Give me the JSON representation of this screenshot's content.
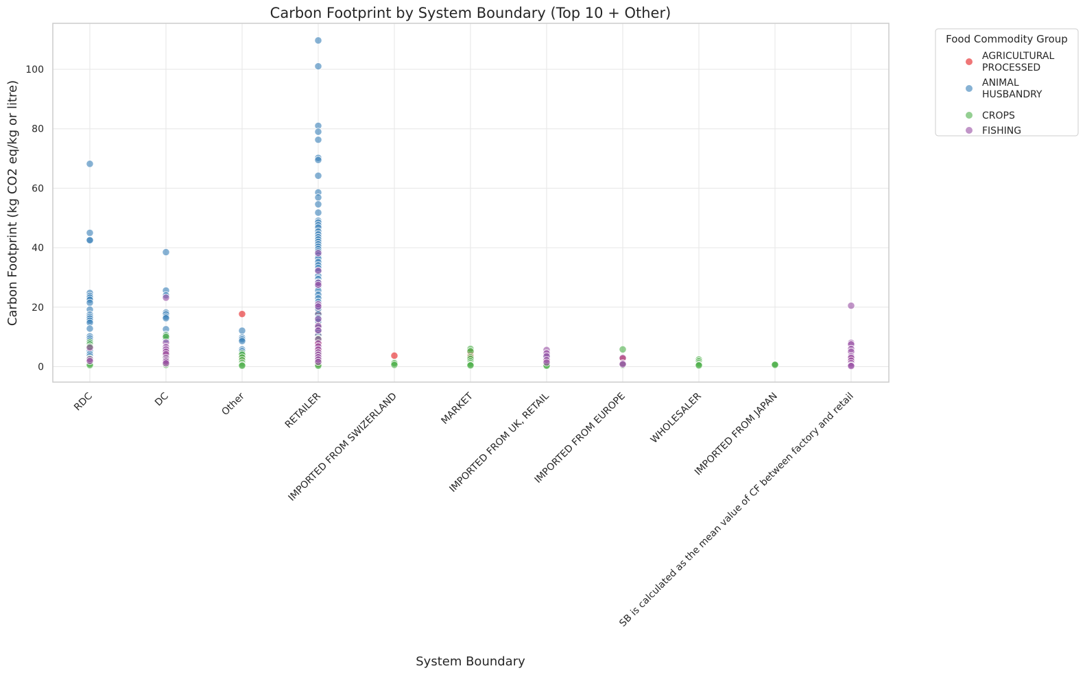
{
  "chart_data": {
    "type": "scatter",
    "title": "Carbon Footprint by System Boundary (Top 10 + Other)",
    "xlabel": "System Boundary",
    "ylabel": "Carbon Footprint (kg CO2 eq/kg or litre)",
    "categories": [
      "RDC",
      "DC",
      "Other",
      "RETAILER",
      "IMPORTED FROM SWIZERLAND",
      "MARKET",
      "IMPORTED FROM UK, RETAIL",
      "IMPORTED FROM EUROPE",
      "WHOLESALER",
      "IMPORTED FROM JAPAN",
      "SB is calculated as the mean value of CF between factory and retail"
    ],
    "ylim": [
      -5,
      115
    ],
    "yticks": [
      0,
      20,
      40,
      60,
      80,
      100
    ],
    "grid": true,
    "legend": {
      "title": "Food Commodity Group",
      "placement": "outside-right"
    },
    "series": [
      {
        "name": "AGRICULTURAL PROCESSED",
        "color": "#e41a1c",
        "points": [
          [
            "RDC",
            6.2
          ],
          [
            "RDC",
            2.1
          ],
          [
            "DC",
            4.8
          ],
          [
            "DC",
            1.5
          ],
          [
            "Other",
            17.7
          ],
          [
            "Other",
            3.2
          ],
          [
            "RETAILER",
            18
          ],
          [
            "RETAILER",
            14
          ],
          [
            "RETAILER",
            11
          ],
          [
            "RETAILER",
            8
          ],
          [
            "RETAILER",
            5.5
          ],
          [
            "RETAILER",
            3.5
          ],
          [
            "RETAILER",
            2
          ],
          [
            "RETAILER",
            1
          ],
          [
            "IMPORTED FROM SWIZERLAND",
            3.7
          ],
          [
            "MARKET",
            4.8
          ],
          [
            "MARKET",
            3.8
          ],
          [
            "IMPORTED FROM UK, RETAIL",
            2.5
          ],
          [
            "IMPORTED FROM EUROPE",
            2.7
          ],
          [
            "SB is calculated as the mean value of CF between factory and retail",
            2.5
          ]
        ]
      },
      {
        "name": "ANIMAL HUSBANDRY",
        "color": "#377eb8",
        "points": [
          [
            "RDC",
            68.2
          ],
          [
            "RDC",
            45
          ],
          [
            "RDC",
            42.7
          ],
          [
            "RDC",
            42.5
          ],
          [
            "RDC",
            24.8
          ],
          [
            "RDC",
            23.8
          ],
          [
            "RDC",
            23.2
          ],
          [
            "RDC",
            22.5
          ],
          [
            "RDC",
            21.5
          ],
          [
            "RDC",
            19.2
          ],
          [
            "RDC",
            17.5
          ],
          [
            "RDC",
            16.8
          ],
          [
            "RDC",
            16.2
          ],
          [
            "RDC",
            15.5
          ],
          [
            "RDC",
            14.8
          ],
          [
            "RDC",
            12.8
          ],
          [
            "RDC",
            10.2
          ],
          [
            "RDC",
            9.5
          ],
          [
            "RDC",
            8.8
          ],
          [
            "RDC",
            7.9
          ],
          [
            "RDC",
            5.4
          ],
          [
            "RDC",
            4.2
          ],
          [
            "RDC",
            3.5
          ],
          [
            "DC",
            38.5
          ],
          [
            "DC",
            25.6
          ],
          [
            "DC",
            24
          ],
          [
            "DC",
            18.2
          ],
          [
            "DC",
            17.6
          ],
          [
            "DC",
            16.8
          ],
          [
            "DC",
            16.3
          ],
          [
            "DC",
            12.6
          ],
          [
            "DC",
            10.8
          ],
          [
            "DC",
            9.2
          ],
          [
            "Other",
            12.1
          ],
          [
            "Other",
            9.8
          ],
          [
            "Other",
            9.2
          ],
          [
            "Other",
            8.6
          ],
          [
            "Other",
            5.8
          ],
          [
            "Other",
            5.2
          ],
          [
            "RETAILER",
            109.7
          ],
          [
            "RETAILER",
            101
          ],
          [
            "RETAILER",
            81
          ],
          [
            "RETAILER",
            79
          ],
          [
            "RETAILER",
            76.3
          ],
          [
            "RETAILER",
            70.2
          ],
          [
            "RETAILER",
            69.5
          ],
          [
            "RETAILER",
            64.2
          ],
          [
            "RETAILER",
            58.6
          ],
          [
            "RETAILER",
            56.9
          ],
          [
            "RETAILER",
            54.6
          ],
          [
            "RETAILER",
            51.8
          ],
          [
            "RETAILER",
            49.1
          ],
          [
            "RETAILER",
            48.5
          ],
          [
            "RETAILER",
            47.6
          ],
          [
            "RETAILER",
            46.8
          ],
          [
            "RETAILER",
            45.5
          ],
          [
            "RETAILER",
            44.5
          ],
          [
            "RETAILER",
            43.6
          ],
          [
            "RETAILER",
            42.8
          ],
          [
            "RETAILER",
            42
          ],
          [
            "RETAILER",
            41.2
          ],
          [
            "RETAILER",
            40.4
          ],
          [
            "RETAILER",
            39.6
          ],
          [
            "RETAILER",
            38.8
          ],
          [
            "RETAILER",
            37.5
          ],
          [
            "RETAILER",
            36.4
          ],
          [
            "RETAILER",
            35.2
          ],
          [
            "RETAILER",
            34.1
          ],
          [
            "RETAILER",
            33.2
          ],
          [
            "RETAILER",
            32
          ],
          [
            "RETAILER",
            30.6
          ],
          [
            "RETAILER",
            29.5
          ],
          [
            "RETAILER",
            28.5
          ],
          [
            "RETAILER",
            27
          ],
          [
            "RETAILER",
            25.6
          ],
          [
            "RETAILER",
            24.2
          ],
          [
            "RETAILER",
            23
          ],
          [
            "RETAILER",
            21.8
          ],
          [
            "RETAILER",
            20.5
          ],
          [
            "RETAILER",
            19.4
          ],
          [
            "RETAILER",
            17.6
          ],
          [
            "RETAILER",
            16.4
          ],
          [
            "RETAILER",
            15.2
          ],
          [
            "RETAILER",
            13.2
          ],
          [
            "RETAILER",
            12
          ],
          [
            "RETAILER",
            10.5
          ],
          [
            "IMPORTED FROM UK, RETAIL",
            3.3
          ]
        ]
      },
      {
        "name": "CROPS",
        "color": "#4daf4a",
        "points": [
          [
            "RDC",
            8.2
          ],
          [
            "RDC",
            7.5
          ],
          [
            "RDC",
            6.8
          ],
          [
            "RDC",
            2.8
          ],
          [
            "RDC",
            1.4
          ],
          [
            "RDC",
            0.9
          ],
          [
            "RDC",
            0.5
          ],
          [
            "DC",
            10.5
          ],
          [
            "DC",
            10
          ],
          [
            "DC",
            3
          ],
          [
            "DC",
            0.6
          ],
          [
            "Other",
            4.5
          ],
          [
            "Other",
            4
          ],
          [
            "Other",
            3.1
          ],
          [
            "Other",
            2.2
          ],
          [
            "Other",
            1.3
          ],
          [
            "Other",
            0.6
          ],
          [
            "Other",
            0.3
          ],
          [
            "RETAILER",
            9.5
          ],
          [
            "RETAILER",
            4.4
          ],
          [
            "RETAILER",
            2.6
          ],
          [
            "RETAILER",
            1.5
          ],
          [
            "RETAILER",
            0.6
          ],
          [
            "RETAILER",
            0.3
          ],
          [
            "IMPORTED FROM SWIZERLAND",
            1.4
          ],
          [
            "IMPORTED FROM SWIZERLAND",
            1.1
          ],
          [
            "IMPORTED FROM SWIZERLAND",
            0.6
          ],
          [
            "MARKET",
            6
          ],
          [
            "MARKET",
            5.2
          ],
          [
            "MARKET",
            3.2
          ],
          [
            "MARKET",
            2.6
          ],
          [
            "MARKET",
            1.8
          ],
          [
            "MARKET",
            1.2
          ],
          [
            "MARKET",
            0.7
          ],
          [
            "MARKET",
            0.4
          ],
          [
            "IMPORTED FROM UK, RETAIL",
            0.9
          ],
          [
            "IMPORTED FROM UK, RETAIL",
            0.5
          ],
          [
            "IMPORTED FROM UK, RETAIL",
            0.3
          ],
          [
            "IMPORTED FROM EUROPE",
            5.8
          ],
          [
            "IMPORTED FROM EUROPE",
            0.5
          ],
          [
            "WHOLESALER",
            2.4
          ],
          [
            "WHOLESALER",
            1.8
          ],
          [
            "WHOLESALER",
            1.2
          ],
          [
            "WHOLESALER",
            0.7
          ],
          [
            "WHOLESALER",
            0.4
          ],
          [
            "IMPORTED FROM JAPAN",
            1
          ],
          [
            "IMPORTED FROM JAPAN",
            0.8
          ],
          [
            "IMPORTED FROM JAPAN",
            0.6
          ]
        ]
      },
      {
        "name": "FISHING",
        "color": "#984ea3",
        "points": [
          [
            "RDC",
            6.4
          ],
          [
            "RDC",
            2.5
          ],
          [
            "RDC",
            1.9
          ],
          [
            "DC",
            23.2
          ],
          [
            "DC",
            8.1
          ],
          [
            "DC",
            6.6
          ],
          [
            "DC",
            5.8
          ],
          [
            "DC",
            5
          ],
          [
            "DC",
            4.2
          ],
          [
            "DC",
            2.9
          ],
          [
            "DC",
            2.2
          ],
          [
            "DC",
            1.7
          ],
          [
            "DC",
            1.1
          ],
          [
            "RETAILER",
            38.2
          ],
          [
            "RETAILER",
            32.3
          ],
          [
            "RETAILER",
            28.2
          ],
          [
            "RETAILER",
            27.5
          ],
          [
            "RETAILER",
            21
          ],
          [
            "RETAILER",
            20.2
          ],
          [
            "RETAILER",
            16
          ],
          [
            "RETAILER",
            13.6
          ],
          [
            "RETAILER",
            12.2
          ],
          [
            "RETAILER",
            9.2
          ],
          [
            "RETAILER",
            7.8
          ],
          [
            "RETAILER",
            6.8
          ],
          [
            "RETAILER",
            5.8
          ],
          [
            "RETAILER",
            4.8
          ],
          [
            "RETAILER",
            4
          ],
          [
            "RETAILER",
            3.2
          ],
          [
            "RETAILER",
            2.4
          ],
          [
            "RETAILER",
            1.6
          ],
          [
            "IMPORTED FROM UK, RETAIL",
            5.6
          ],
          [
            "IMPORTED FROM UK, RETAIL",
            4.5
          ],
          [
            "IMPORTED FROM UK, RETAIL",
            3.5
          ],
          [
            "IMPORTED FROM UK, RETAIL",
            2.2
          ],
          [
            "IMPORTED FROM UK, RETAIL",
            1.4
          ],
          [
            "IMPORTED FROM EUROPE",
            2.9
          ],
          [
            "IMPORTED FROM EUROPE",
            1.1
          ],
          [
            "IMPORTED FROM EUROPE",
            0.8
          ],
          [
            "SB is calculated as the mean value of CF between factory and retail",
            20.5
          ],
          [
            "SB is calculated as the mean value of CF between factory and retail",
            8
          ],
          [
            "SB is calculated as the mean value of CF between factory and retail",
            7.5
          ],
          [
            "SB is calculated as the mean value of CF between factory and retail",
            6
          ],
          [
            "SB is calculated as the mean value of CF between factory and retail",
            5
          ],
          [
            "SB is calculated as the mean value of CF between factory and retail",
            3.5
          ],
          [
            "SB is calculated as the mean value of CF between factory and retail",
            3
          ],
          [
            "SB is calculated as the mean value of CF between factory and retail",
            2
          ],
          [
            "SB is calculated as the mean value of CF between factory and retail",
            1.2
          ],
          [
            "SB is calculated as the mean value of CF between factory and retail",
            0.5
          ],
          [
            "SB is calculated as the mean value of CF between factory and retail",
            0.2
          ]
        ]
      }
    ]
  }
}
